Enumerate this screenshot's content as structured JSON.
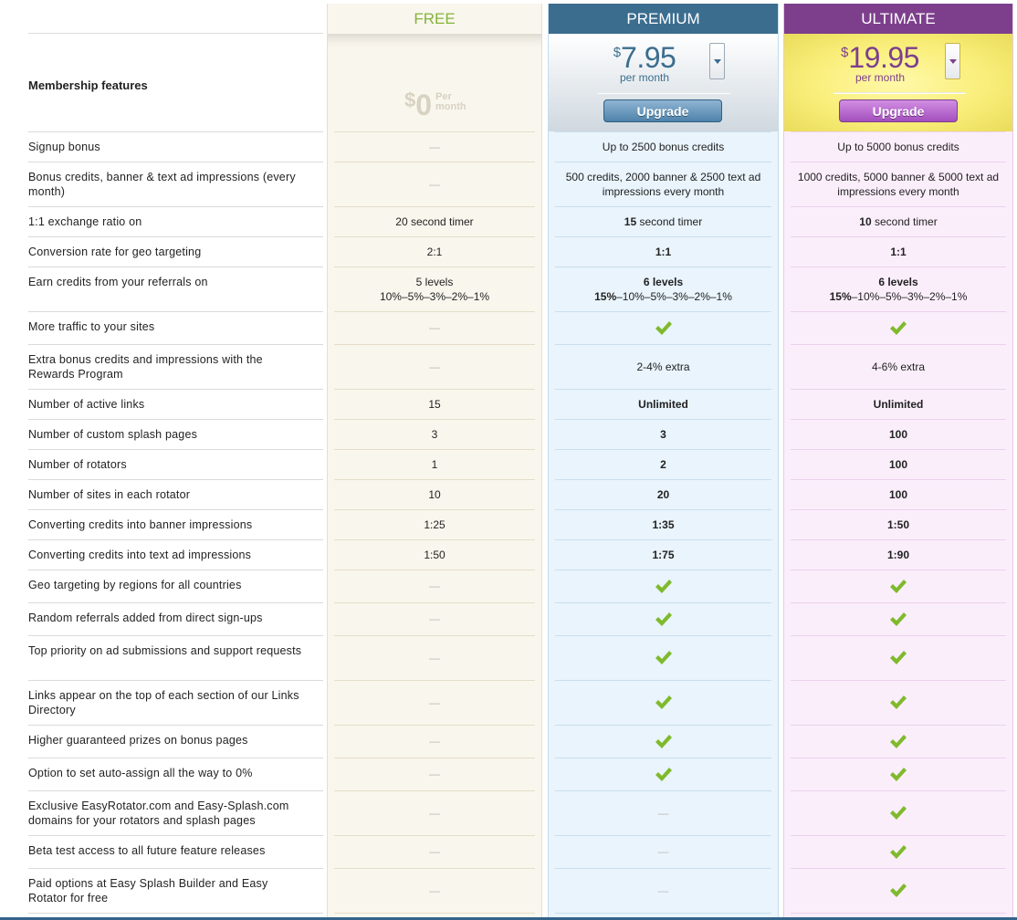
{
  "plans": {
    "free": {
      "title": "FREE",
      "currency": "$",
      "price": "0",
      "per": "Per month"
    },
    "premium": {
      "title": "PREMIUM",
      "currency": "$",
      "price": "7.95",
      "per": "per month",
      "upgrade_label": "Upgrade"
    },
    "ultimate": {
      "title": "ULTIMATE",
      "currency": "$",
      "price": "19.95",
      "per": "per month",
      "upgrade_label": "Upgrade"
    }
  },
  "header_label": "Membership features",
  "colors": {
    "free_title": "#84b43a",
    "premium": "#3b6d8f",
    "ultimate": "#7d3f8c",
    "check": "#7fba2c"
  },
  "rows": [
    {
      "label": "Signup bonus",
      "free": "—",
      "premium": "Up to 2500 bonus credits",
      "ultimate": "Up to 5000 bonus credits"
    },
    {
      "label": "Bonus credits, banner & text ad impressions (every month)",
      "free": "—",
      "premium": "500 credits, 2000 banner & 2500 text ad impressions every month",
      "ultimate": "1000 credits, 5000 banner & 5000 text ad impressions every month"
    },
    {
      "label": "1:1 exchange ratio on",
      "free": "20 second timer",
      "premium": "15 second timer",
      "ultimate": "10 second timer"
    },
    {
      "label": "Conversion rate for geo targeting",
      "free": "2:1",
      "premium": "1:1",
      "ultimate": "1:1"
    },
    {
      "label": "Earn credits from your referrals on",
      "free": "5 levels 10%–5%–3%–2%–1%",
      "premium": "6 levels 15%–10%–5%–3%–2%–1%",
      "ultimate": "6 levels 15%–10%–5%–3%–2%–1%"
    },
    {
      "label": "More traffic to your sites",
      "free": "—",
      "premium": "check",
      "ultimate": "check"
    },
    {
      "label": "Extra bonus credits and impressions with the Rewards Program",
      "free": "—",
      "premium": "2-4% extra",
      "ultimate": "4-6% extra"
    },
    {
      "label": "Number of active links",
      "free": "15",
      "premium": "Unlimited",
      "ultimate": "Unlimited"
    },
    {
      "label": "Number of custom splash pages",
      "free": "3",
      "premium": "3",
      "ultimate": "100"
    },
    {
      "label": "Number of rotators",
      "free": "1",
      "premium": "2",
      "ultimate": "100"
    },
    {
      "label": "Number of sites in each rotator",
      "free": "10",
      "premium": "20",
      "ultimate": "100"
    },
    {
      "label": "Converting credits into banner impressions",
      "free": "1:25",
      "premium": "1:35",
      "ultimate": "1:50"
    },
    {
      "label": "Converting credits into text ad impressions",
      "free": "1:50",
      "premium": "1:75",
      "ultimate": "1:90"
    },
    {
      "label": "Geo targeting by regions for all countries",
      "free": "—",
      "premium": "check",
      "ultimate": "check"
    },
    {
      "label": "Random referrals added from direct sign-ups",
      "free": "—",
      "premium": "check",
      "ultimate": "check"
    },
    {
      "label": "Top priority on ad submissions and support requests",
      "free": "—",
      "premium": "check",
      "ultimate": "check"
    },
    {
      "label": "Links appear on the top of each section of our Links Directory",
      "free": "—",
      "premium": "check",
      "ultimate": "check"
    },
    {
      "label": "Higher guaranteed prizes on bonus pages",
      "free": "—",
      "premium": "check",
      "ultimate": "check"
    },
    {
      "label": "Option to set auto-assign all the way to 0%",
      "free": "—",
      "premium": "check",
      "ultimate": "check"
    },
    {
      "label": "Exclusive EasyRotator.com and Easy-Splash.com domains for your rotators and splash pages",
      "free": "—",
      "premium": "—",
      "ultimate": "check"
    },
    {
      "label": "Beta test access to all future feature releases",
      "free": "—",
      "premium": "—",
      "ultimate": "check"
    },
    {
      "label": "Paid options at Easy Splash Builder and Easy Rotator for free",
      "free": "—",
      "premium": "—",
      "ultimate": "check"
    }
  ]
}
